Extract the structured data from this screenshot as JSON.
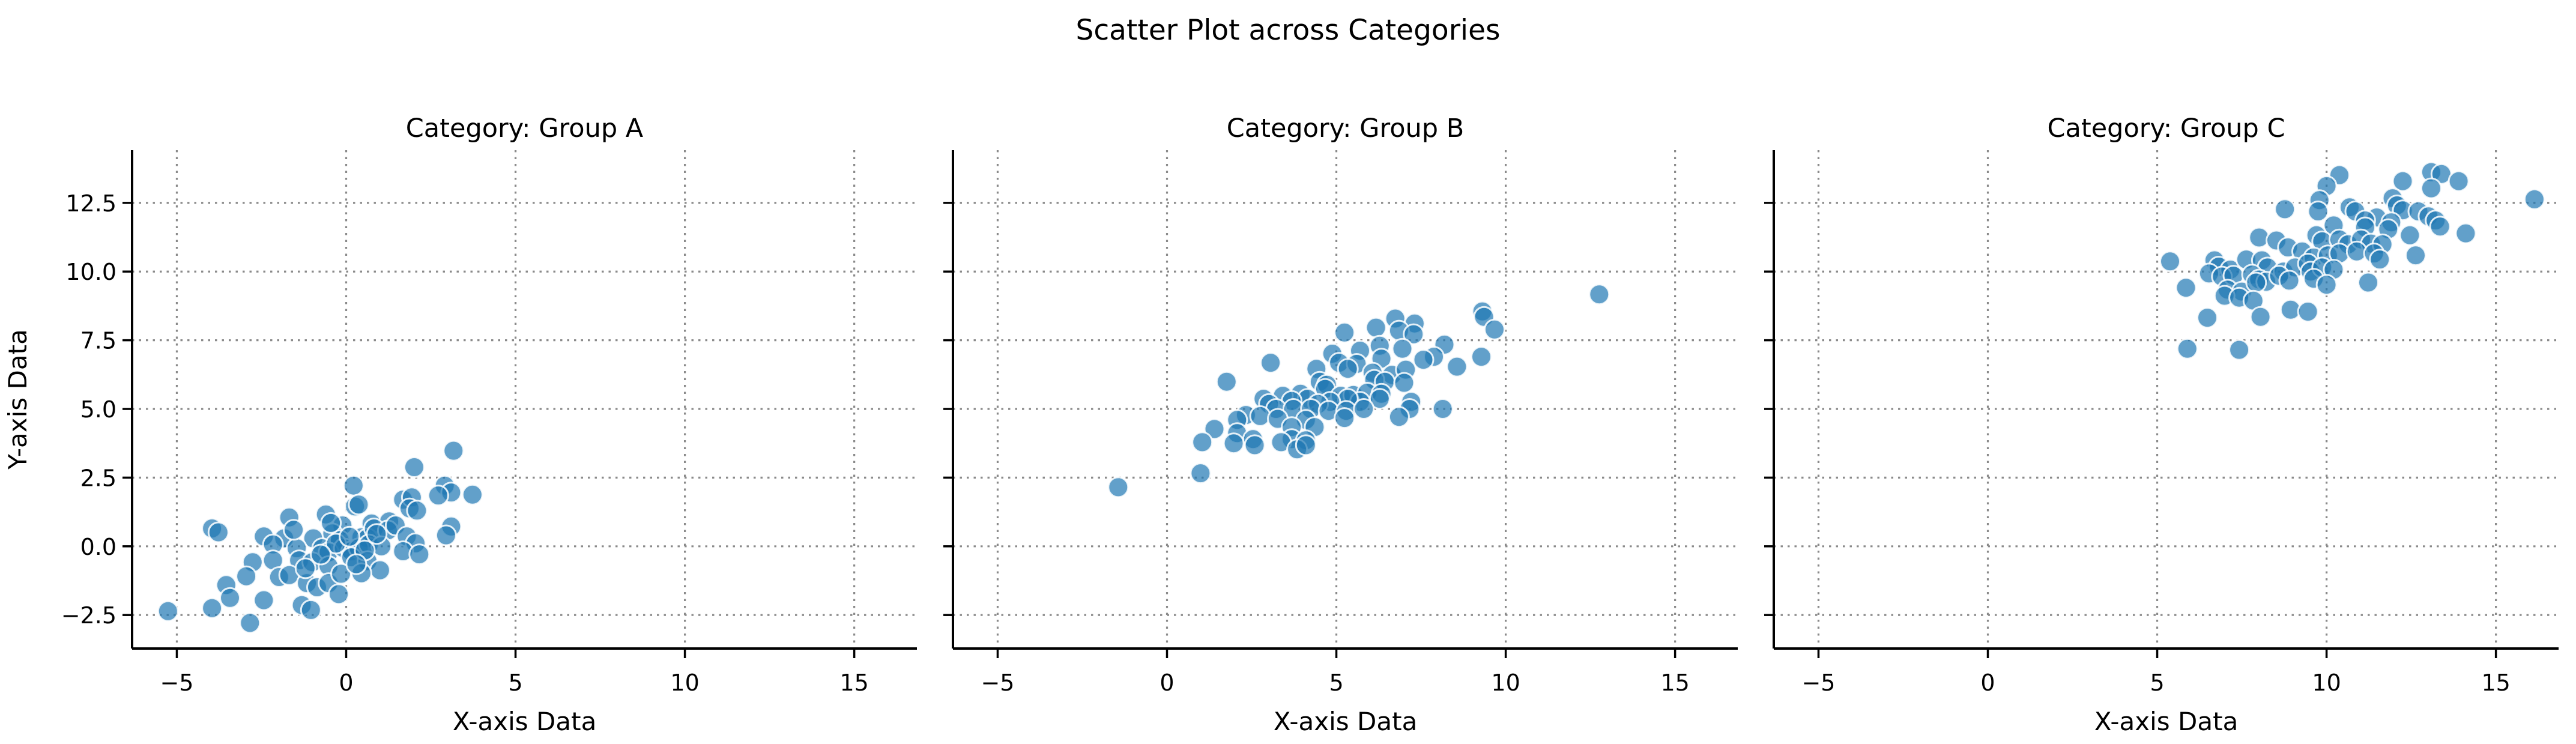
{
  "chart_data": {
    "type": "scatter",
    "title": "Scatter Plot across Categories",
    "xlabel": "X-axis Data",
    "ylabel": "Y-axis Data",
    "xlim": [
      -6.32,
      16.85
    ],
    "ylim": [
      -3.72,
      14.42
    ],
    "xticks": [
      -5,
      0,
      5,
      10,
      15
    ],
    "xtick_labels": [
      "−5",
      "0",
      "5",
      "10",
      "15"
    ],
    "yticks": [
      -2.5,
      0.0,
      2.5,
      5.0,
      7.5,
      10.0,
      12.5
    ],
    "ytick_labels": [
      "−2.5",
      "0.0",
      "2.5",
      "5.0",
      "7.5",
      "10.0",
      "12.5"
    ],
    "grid": true,
    "grid_style": "dotted",
    "legend": "none",
    "colors": {
      "marker": "#1f77b4",
      "marker_edge": "#ffffff",
      "grid": "#8a8a8a",
      "spine": "#000000",
      "text": "#000000",
      "background": "#ffffff"
    },
    "marker_alpha": 0.7,
    "facets": [
      {
        "title": "Category: Group A",
        "points": [
          [
            3.17,
            3.48
          ],
          [
            2.01,
            2.88
          ],
          [
            0.22,
            2.21
          ],
          [
            2.91,
            2.21
          ],
          [
            3.1,
            1.96
          ],
          [
            3.73,
            1.88
          ],
          [
            2.72,
            1.85
          ],
          [
            1.68,
            1.7
          ],
          [
            1.94,
            1.78
          ],
          [
            1.87,
            1.38
          ],
          [
            2.09,
            1.3
          ],
          [
            0.26,
            1.45
          ],
          [
            0.37,
            1.52
          ],
          [
            -1.68,
            1.05
          ],
          [
            -0.6,
            1.16
          ],
          [
            -3.96,
            0.65
          ],
          [
            -3.77,
            0.51
          ],
          [
            -0.11,
            0.76
          ],
          [
            0.75,
            0.83
          ],
          [
            1.27,
            0.91
          ],
          [
            3.1,
            0.72
          ],
          [
            2.95,
            0.4
          ],
          [
            -2.43,
            0.36
          ],
          [
            -1.83,
            0.29
          ],
          [
            -0.97,
            0.29
          ],
          [
            -0.41,
            0.47
          ],
          [
            -0.19,
            0.22
          ],
          [
            0.45,
            0.33
          ],
          [
            0.63,
            0.29
          ],
          [
            0.82,
            0.65
          ],
          [
            1.23,
            0.58
          ],
          [
            1.46,
            0.76
          ],
          [
            1.79,
            0.36
          ],
          [
            2.05,
            0.11
          ],
          [
            -2.16,
            0.07
          ],
          [
            -1.46,
            -0.07
          ],
          [
            -0.71,
            -0.07
          ],
          [
            -0.52,
            -0.22
          ],
          [
            -0.07,
            -0.07
          ],
          [
            0.15,
            -0.18
          ],
          [
            0.37,
            -0.07
          ],
          [
            0.67,
            0.07
          ],
          [
            1.04,
            0.0
          ],
          [
            1.68,
            -0.18
          ],
          [
            2.16,
            -0.29
          ],
          [
            -2.76,
            -0.58
          ],
          [
            -2.16,
            -0.51
          ],
          [
            -1.39,
            -0.51
          ],
          [
            -1.0,
            -0.58
          ],
          [
            -0.52,
            -0.72
          ],
          [
            0.15,
            -0.4
          ],
          [
            0.63,
            -0.54
          ],
          [
            1.0,
            -0.87
          ],
          [
            0.45,
            -0.98
          ],
          [
            -2.95,
            -1.09
          ],
          [
            -1.98,
            -1.12
          ],
          [
            -1.68,
            -1.05
          ],
          [
            -1.16,
            -1.34
          ],
          [
            -0.86,
            -1.49
          ],
          [
            -0.52,
            -1.34
          ],
          [
            -0.22,
            -1.74
          ],
          [
            -3.54,
            -1.41
          ],
          [
            -3.43,
            -1.88
          ],
          [
            -2.43,
            -1.96
          ],
          [
            -1.31,
            -2.14
          ],
          [
            -1.04,
            -2.32
          ],
          [
            -3.96,
            -2.25
          ],
          [
            -5.26,
            -2.36
          ],
          [
            -2.84,
            -2.79
          ],
          [
            -0.3,
            0.1
          ],
          [
            0.1,
            0.35
          ],
          [
            -0.75,
            -0.3
          ],
          [
            0.55,
            -0.15
          ],
          [
            -1.2,
            -0.8
          ],
          [
            0.9,
            0.45
          ],
          [
            -0.15,
            -1.0
          ],
          [
            0.3,
            -0.65
          ],
          [
            -1.55,
            0.6
          ],
          [
            -0.45,
            0.85
          ]
        ]
      },
      {
        "title": "Category: Group B",
        "points": [
          [
            12.76,
            9.17
          ],
          [
            9.31,
            8.55
          ],
          [
            9.36,
            8.35
          ],
          [
            9.67,
            7.89
          ],
          [
            6.74,
            8.29
          ],
          [
            7.31,
            8.11
          ],
          [
            6.17,
            7.96
          ],
          [
            6.85,
            7.85
          ],
          [
            7.28,
            7.72
          ],
          [
            5.24,
            7.78
          ],
          [
            8.19,
            7.34
          ],
          [
            6.28,
            7.3
          ],
          [
            6.95,
            7.19
          ],
          [
            5.7,
            7.12
          ],
          [
            6.33,
            6.83
          ],
          [
            7.88,
            6.9
          ],
          [
            9.28,
            6.9
          ],
          [
            4.88,
            7.01
          ],
          [
            5.08,
            6.68
          ],
          [
            5.6,
            6.64
          ],
          [
            3.06,
            6.68
          ],
          [
            4.41,
            6.46
          ],
          [
            5.34,
            6.46
          ],
          [
            7.57,
            6.79
          ],
          [
            8.56,
            6.54
          ],
          [
            6.07,
            6.32
          ],
          [
            6.64,
            6.24
          ],
          [
            7.05,
            6.43
          ],
          [
            1.76,
            5.99
          ],
          [
            4.51,
            5.99
          ],
          [
            4.72,
            5.88
          ],
          [
            6.12,
            6.06
          ],
          [
            6.43,
            5.99
          ],
          [
            7.0,
            5.95
          ],
          [
            4.67,
            5.73
          ],
          [
            5.13,
            5.48
          ],
          [
            5.5,
            5.51
          ],
          [
            5.91,
            5.59
          ],
          [
            6.33,
            5.55
          ],
          [
            3.94,
            5.55
          ],
          [
            4.15,
            5.37
          ],
          [
            3.42,
            5.48
          ],
          [
            2.85,
            5.37
          ],
          [
            7.21,
            5.26
          ],
          [
            6.28,
            5.37
          ],
          [
            5.7,
            5.26
          ],
          [
            5.34,
            5.37
          ],
          [
            4.82,
            5.26
          ],
          [
            4.46,
            5.18
          ],
          [
            3.68,
            5.29
          ],
          [
            3.01,
            5.18
          ],
          [
            3.22,
            5.0
          ],
          [
            3.73,
            5.0
          ],
          [
            4.25,
            5.0
          ],
          [
            4.77,
            4.93
          ],
          [
            5.29,
            4.93
          ],
          [
            5.81,
            5.0
          ],
          [
            7.16,
            5.0
          ],
          [
            8.14,
            5.0
          ],
          [
            2.33,
            4.78
          ],
          [
            2.07,
            4.6
          ],
          [
            2.75,
            4.74
          ],
          [
            3.27,
            4.64
          ],
          [
            4.1,
            4.6
          ],
          [
            5.24,
            4.67
          ],
          [
            6.85,
            4.71
          ],
          [
            1.4,
            4.27
          ],
          [
            2.07,
            4.12
          ],
          [
            2.54,
            3.9
          ],
          [
            3.68,
            4.34
          ],
          [
            4.36,
            4.34
          ],
          [
            3.68,
            3.9
          ],
          [
            4.1,
            3.86
          ],
          [
            1.04,
            3.79
          ],
          [
            1.97,
            3.75
          ],
          [
            2.59,
            3.68
          ],
          [
            3.37,
            3.79
          ],
          [
            3.84,
            3.53
          ],
          [
            4.1,
            3.68
          ],
          [
            0.99,
            2.66
          ],
          [
            -1.44,
            2.15
          ]
        ]
      },
      {
        "title": "Category: Group C",
        "points": [
          [
            10.38,
            13.51
          ],
          [
            10.0,
            13.11
          ],
          [
            13.09,
            13.62
          ],
          [
            13.39,
            13.55
          ],
          [
            12.25,
            13.29
          ],
          [
            13.9,
            13.29
          ],
          [
            13.09,
            13.03
          ],
          [
            16.14,
            12.63
          ],
          [
            11.95,
            12.67
          ],
          [
            9.79,
            12.6
          ],
          [
            8.77,
            12.27
          ],
          [
            9.75,
            12.19
          ],
          [
            10.68,
            12.34
          ],
          [
            10.85,
            12.19
          ],
          [
            12.08,
            12.41
          ],
          [
            12.25,
            12.23
          ],
          [
            12.71,
            12.19
          ],
          [
            13.01,
            12.01
          ],
          [
            13.22,
            11.86
          ],
          [
            11.48,
            11.97
          ],
          [
            11.14,
            11.86
          ],
          [
            10.21,
            11.68
          ],
          [
            11.14,
            11.61
          ],
          [
            11.91,
            11.79
          ],
          [
            11.82,
            11.54
          ],
          [
            13.35,
            11.64
          ],
          [
            14.11,
            11.39
          ],
          [
            12.46,
            11.32
          ],
          [
            8.01,
            11.24
          ],
          [
            8.52,
            11.13
          ],
          [
            9.7,
            11.32
          ],
          [
            9.87,
            11.1
          ],
          [
            10.38,
            11.17
          ],
          [
            10.64,
            10.99
          ],
          [
            11.02,
            11.17
          ],
          [
            11.31,
            11.02
          ],
          [
            11.65,
            10.99
          ],
          [
            8.86,
            10.88
          ],
          [
            9.28,
            10.73
          ],
          [
            9.62,
            10.51
          ],
          [
            10.04,
            10.59
          ],
          [
            10.38,
            10.66
          ],
          [
            10.89,
            10.73
          ],
          [
            11.4,
            10.66
          ],
          [
            11.57,
            10.44
          ],
          [
            12.63,
            10.59
          ],
          [
            5.38,
            10.37
          ],
          [
            6.69,
            10.41
          ],
          [
            6.82,
            10.18
          ],
          [
            7.16,
            10.07
          ],
          [
            7.63,
            10.44
          ],
          [
            8.09,
            10.41
          ],
          [
            8.26,
            10.15
          ],
          [
            8.73,
            10.0
          ],
          [
            9.07,
            10.15
          ],
          [
            9.45,
            10.29
          ],
          [
            9.53,
            10.0
          ],
          [
            9.87,
            10.15
          ],
          [
            10.21,
            10.07
          ],
          [
            6.53,
            9.93
          ],
          [
            6.91,
            9.82
          ],
          [
            7.25,
            9.85
          ],
          [
            7.8,
            9.89
          ],
          [
            8.01,
            9.71
          ],
          [
            8.22,
            9.63
          ],
          [
            8.6,
            9.85
          ],
          [
            8.9,
            9.67
          ],
          [
            9.62,
            9.74
          ],
          [
            10.0,
            9.52
          ],
          [
            5.85,
            9.41
          ],
          [
            7.08,
            9.34
          ],
          [
            7.5,
            9.27
          ],
          [
            7.92,
            9.6
          ],
          [
            6.99,
            9.12
          ],
          [
            7.42,
            9.05
          ],
          [
            7.84,
            8.94
          ],
          [
            11.23,
            9.6
          ],
          [
            6.48,
            8.32
          ],
          [
            8.05,
            8.35
          ],
          [
            8.94,
            8.61
          ],
          [
            9.45,
            8.54
          ],
          [
            5.89,
            7.19
          ],
          [
            7.42,
            7.15
          ]
        ]
      }
    ]
  }
}
